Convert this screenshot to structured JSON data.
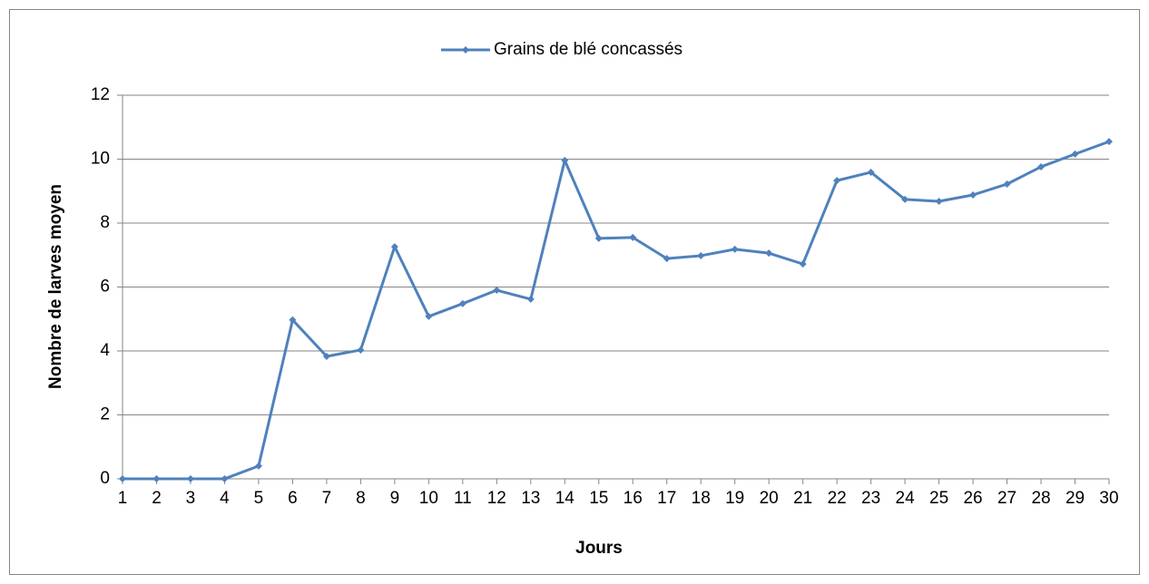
{
  "chart_data": {
    "type": "line",
    "x_label": "Jours",
    "y_label": "Nombre de larves moyen",
    "categories": [
      "1",
      "2",
      "3",
      "4",
      "5",
      "6",
      "7",
      "8",
      "9",
      "10",
      "11",
      "12",
      "13",
      "14",
      "15",
      "16",
      "17",
      "18",
      "19",
      "20",
      "21",
      "22",
      "23",
      "24",
      "25",
      "26",
      "27",
      "28",
      "29",
      "30"
    ],
    "series": [
      {
        "name": "Grains de blé concassés",
        "color": "#4f81bd",
        "values": [
          0,
          0,
          0,
          0,
          0.4,
          4.97,
          3.83,
          4.03,
          7.26,
          5.08,
          5.48,
          5.9,
          5.62,
          9.96,
          7.52,
          7.55,
          6.89,
          6.98,
          7.18,
          7.06,
          6.72,
          9.33,
          9.59,
          8.74,
          8.68,
          8.88,
          9.22,
          9.76,
          10.16,
          10.55
        ]
      }
    ],
    "ylim": [
      0,
      12
    ],
    "yticks": [
      0,
      2,
      4,
      6,
      8,
      10,
      12
    ],
    "grid": true,
    "legend": "top"
  }
}
